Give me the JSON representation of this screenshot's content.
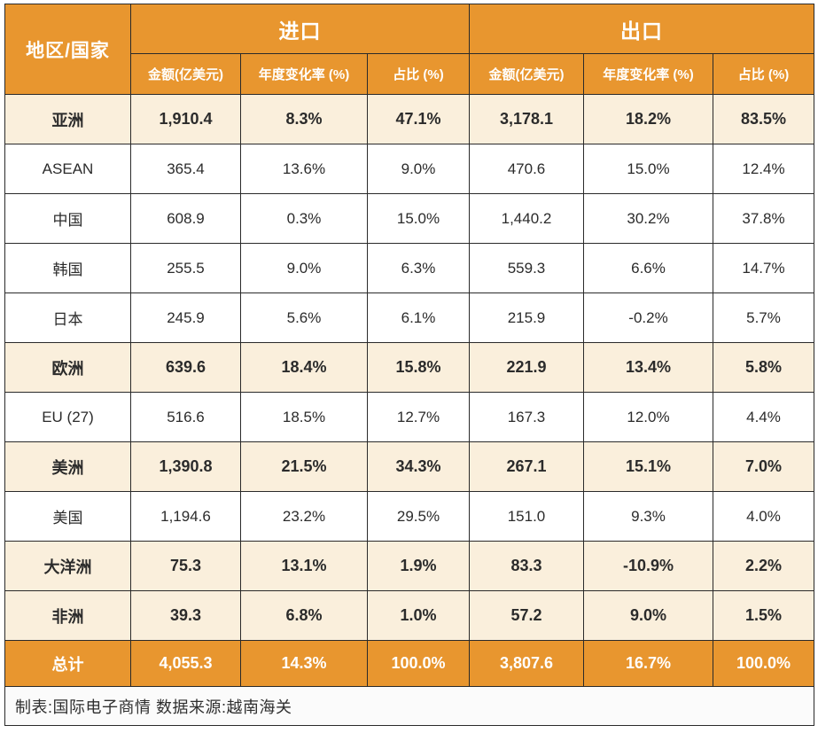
{
  "table": {
    "region_header": "地区/国家",
    "import_header": "进口",
    "export_header": "出口",
    "subheaders": [
      "金额(亿美元)",
      "年度变化率 (%)",
      "占比 (%)"
    ],
    "rows": [
      {
        "region": "亚洲",
        "emphasis": true,
        "total": false,
        "cells": [
          "1,910.4",
          "8.3%",
          "47.1%",
          "3,178.1",
          "18.2%",
          "83.5%"
        ]
      },
      {
        "region": "ASEAN",
        "emphasis": false,
        "total": false,
        "cells": [
          "365.4",
          "13.6%",
          "9.0%",
          "470.6",
          "15.0%",
          "12.4%"
        ]
      },
      {
        "region": "中国",
        "emphasis": false,
        "total": false,
        "cells": [
          "608.9",
          "0.3%",
          "15.0%",
          "1,440.2",
          "30.2%",
          "37.8%"
        ]
      },
      {
        "region": "韩国",
        "emphasis": false,
        "total": false,
        "cells": [
          "255.5",
          "9.0%",
          "6.3%",
          "559.3",
          "6.6%",
          "14.7%"
        ]
      },
      {
        "region": "日本",
        "emphasis": false,
        "total": false,
        "cells": [
          "245.9",
          "5.6%",
          "6.1%",
          "215.9",
          "-0.2%",
          "5.7%"
        ]
      },
      {
        "region": "欧洲",
        "emphasis": true,
        "total": false,
        "cells": [
          "639.6",
          "18.4%",
          "15.8%",
          "221.9",
          "13.4%",
          "5.8%"
        ]
      },
      {
        "region": "EU (27)",
        "emphasis": false,
        "total": false,
        "cells": [
          "516.6",
          "18.5%",
          "12.7%",
          "167.3",
          "12.0%",
          "4.4%"
        ]
      },
      {
        "region": "美洲",
        "emphasis": true,
        "total": false,
        "cells": [
          "1,390.8",
          "21.5%",
          "34.3%",
          "267.1",
          "15.1%",
          "7.0%"
        ]
      },
      {
        "region": "美国",
        "emphasis": false,
        "total": false,
        "cells": [
          "1,194.6",
          "23.2%",
          "29.5%",
          "151.0",
          "9.3%",
          "4.0%"
        ]
      },
      {
        "region": "大洋洲",
        "emphasis": true,
        "total": false,
        "cells": [
          "75.3",
          "13.1%",
          "1.9%",
          "83.3",
          "-10.9%",
          "2.2%"
        ]
      },
      {
        "region": "非洲",
        "emphasis": true,
        "total": false,
        "cells": [
          "39.3",
          "6.8%",
          "1.0%",
          "57.2",
          "9.0%",
          "1.5%"
        ]
      },
      {
        "region": "总计",
        "emphasis": false,
        "total": true,
        "cells": [
          "4,055.3",
          "14.3%",
          "100.0%",
          "3,807.6",
          "16.7%",
          "100.0%"
        ]
      }
    ],
    "footer": "制表:国际电子商情 数据来源:越南海关"
  },
  "colors": {
    "header_orange": "#E8962F",
    "highlight_cream": "#FAEFDC",
    "border_dark": "#2A2A2A",
    "header_text": "#FFFFFF",
    "body_text": "#2B2B2B"
  },
  "chart_data": {
    "type": "table",
    "column_groups": [
      "进口",
      "出口"
    ],
    "columns": [
      "地区/国家",
      "进口 金额(亿美元)",
      "进口 年度变化率 (%)",
      "进口 占比 (%)",
      "出口 金额(亿美元)",
      "出口 年度变化率 (%)",
      "出口 占比 (%)"
    ],
    "rows": [
      [
        "亚洲",
        1910.4,
        8.3,
        47.1,
        3178.1,
        18.2,
        83.5
      ],
      [
        "ASEAN",
        365.4,
        13.6,
        9.0,
        470.6,
        15.0,
        12.4
      ],
      [
        "中国",
        608.9,
        0.3,
        15.0,
        1440.2,
        30.2,
        37.8
      ],
      [
        "韩国",
        255.5,
        9.0,
        6.3,
        559.3,
        6.6,
        14.7
      ],
      [
        "日本",
        245.9,
        5.6,
        6.1,
        215.9,
        -0.2,
        5.7
      ],
      [
        "欧洲",
        639.6,
        18.4,
        15.8,
        221.9,
        13.4,
        5.8
      ],
      [
        "EU (27)",
        516.6,
        18.5,
        12.7,
        167.3,
        12.0,
        4.4
      ],
      [
        "美洲",
        1390.8,
        21.5,
        34.3,
        267.1,
        15.1,
        7.0
      ],
      [
        "美国",
        1194.6,
        23.2,
        29.5,
        151.0,
        9.3,
        4.0
      ],
      [
        "大洋洲",
        75.3,
        13.1,
        1.9,
        83.3,
        -10.9,
        2.2
      ],
      [
        "非洲",
        39.3,
        6.8,
        1.0,
        57.2,
        9.0,
        1.5
      ],
      [
        "总计",
        4055.3,
        14.3,
        100.0,
        3807.6,
        16.7,
        100.0
      ]
    ],
    "source_note": "制表:国际电子商情 数据来源:越南海关"
  }
}
